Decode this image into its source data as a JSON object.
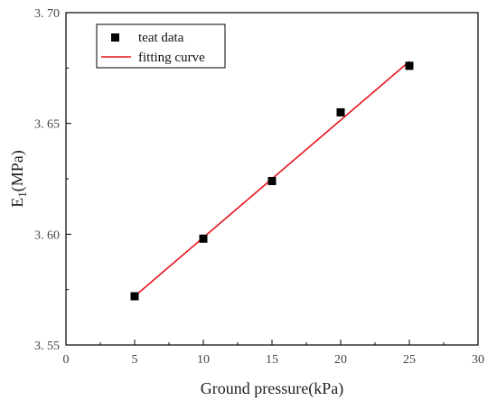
{
  "chart_data": {
    "type": "scatter",
    "x_axis": {
      "label": "Ground pressure(kPa)",
      "min": 0,
      "max": 30,
      "ticks": [
        "0",
        "5",
        "10",
        "15",
        "20",
        "25",
        "30"
      ]
    },
    "y_axis": {
      "label_main": "E",
      "label_sub": "1",
      "label_unit": "(MPa)",
      "min": 3.55,
      "max": 3.7,
      "ticks": [
        "3. 55",
        "3. 60",
        "3. 65",
        "3. 70"
      ]
    },
    "series": [
      {
        "name": "teat data",
        "kind": "markers",
        "marker": "square",
        "color": "#000000",
        "x": [
          5,
          10,
          15,
          20,
          25
        ],
        "y": [
          3.572,
          3.598,
          3.624,
          3.655,
          3.676
        ]
      },
      {
        "name": "fitting curve",
        "kind": "line",
        "color": "#e8141c",
        "x": [
          5,
          25
        ],
        "y": [
          3.572,
          3.678
        ]
      }
    ],
    "legend_position": "top-left",
    "grid": false
  }
}
